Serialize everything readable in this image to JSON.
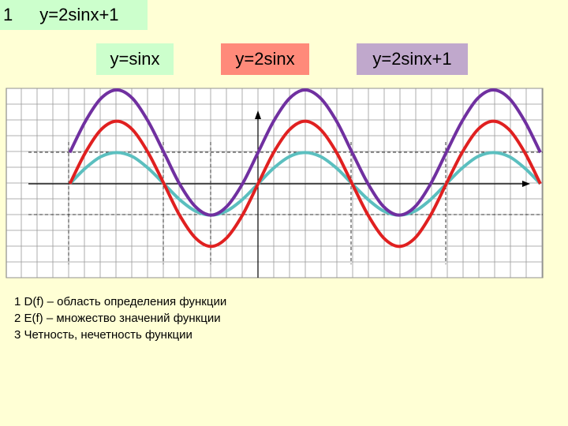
{
  "header": {
    "number": "1",
    "title": "y=2sinx+1"
  },
  "chart_data": {
    "type": "line",
    "x": [
      -6.28,
      -5.76,
      -5.24,
      -4.71,
      -4.19,
      -3.67,
      -3.14,
      -2.62,
      -2.09,
      -1.57,
      -1.05,
      -0.52,
      0,
      0.52,
      1.05,
      1.57,
      2.09,
      2.62,
      3.14,
      3.67,
      4.19,
      4.71,
      5.24,
      5.76,
      6.28,
      6.81,
      7.33,
      7.85,
      8.38,
      8.9,
      9.42
    ],
    "series": [
      {
        "name": "y=sinx",
        "color": "#5bbfbf",
        "values": [
          0,
          0.5,
          0.87,
          1,
          0.87,
          0.5,
          0,
          -0.5,
          -0.87,
          -1,
          -0.87,
          -0.5,
          0,
          0.5,
          0.87,
          1,
          0.87,
          0.5,
          0,
          -0.5,
          -0.87,
          -1,
          -0.87,
          -0.5,
          0,
          0.5,
          0.87,
          1,
          0.87,
          0.5,
          0
        ]
      },
      {
        "name": "y=2sinx",
        "color": "#e02020",
        "values": [
          0,
          1,
          1.73,
          2,
          1.73,
          1,
          0,
          -1,
          -1.73,
          -2,
          -1.73,
          -1,
          0,
          1,
          1.73,
          2,
          1.73,
          1,
          0,
          -1,
          -1.73,
          -2,
          -1.73,
          -1,
          0,
          1,
          1.73,
          2,
          1.73,
          1,
          0
        ]
      },
      {
        "name": "y=2sinx+1",
        "color": "#7030a0",
        "values": [
          1,
          2,
          2.73,
          3,
          2.73,
          2,
          1,
          0,
          -0.73,
          -1,
          -0.73,
          0,
          1,
          2,
          2.73,
          3,
          2.73,
          2,
          1,
          0,
          -0.73,
          -1,
          -0.73,
          0,
          1,
          2,
          2.73,
          3,
          2.73,
          2,
          1
        ]
      }
    ],
    "xlim": [
      -8.4,
      9.5
    ],
    "ylim": [
      -3,
      3.05
    ],
    "grid": true
  },
  "notes": [
    "1 D(f) – область определения функции",
    "2 E(f) – множество значений функции",
    "3 Четность, нечетность функции"
  ]
}
